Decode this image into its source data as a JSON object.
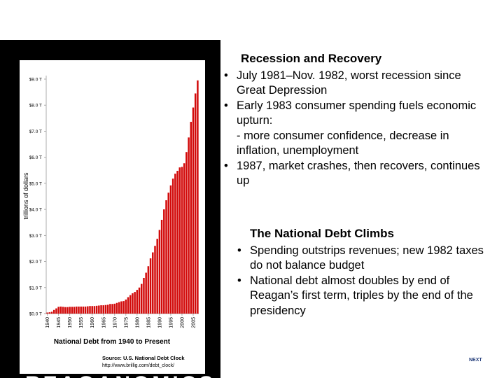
{
  "chart_data": {
    "type": "bar",
    "title": "National Debt from 1940 to Present",
    "ylabel": "trillions of dollars",
    "source": "Source: U.S. National Debt Clock",
    "source_url": "http://www.brillig.com/debt_clock/",
    "color": "#d20a0a",
    "x": [
      1940,
      1941,
      1942,
      1943,
      1944,
      1945,
      1946,
      1947,
      1948,
      1949,
      1950,
      1951,
      1952,
      1953,
      1954,
      1955,
      1956,
      1957,
      1958,
      1959,
      1960,
      1961,
      1962,
      1963,
      1964,
      1965,
      1966,
      1967,
      1968,
      1969,
      1970,
      1971,
      1972,
      1973,
      1974,
      1975,
      1976,
      1977,
      1978,
      1979,
      1980,
      1981,
      1982,
      1983,
      1984,
      1985,
      1986,
      1987,
      1988,
      1989,
      1990,
      1991,
      1992,
      1993,
      1994,
      1995,
      1996,
      1997,
      1998,
      1999,
      2000,
      2001,
      2002,
      2003,
      2004,
      2005,
      2006,
      2007
    ],
    "values": [
      0.04,
      0.05,
      0.07,
      0.14,
      0.2,
      0.26,
      0.27,
      0.26,
      0.25,
      0.25,
      0.26,
      0.26,
      0.26,
      0.27,
      0.27,
      0.27,
      0.27,
      0.27,
      0.28,
      0.29,
      0.29,
      0.29,
      0.3,
      0.31,
      0.32,
      0.32,
      0.33,
      0.34,
      0.37,
      0.37,
      0.38,
      0.41,
      0.44,
      0.47,
      0.48,
      0.54,
      0.63,
      0.71,
      0.78,
      0.83,
      0.91,
      1.0,
      1.14,
      1.37,
      1.57,
      1.82,
      2.12,
      2.35,
      2.6,
      2.87,
      3.21,
      3.6,
      4.0,
      4.35,
      4.64,
      4.92,
      5.18,
      5.37,
      5.48,
      5.61,
      5.63,
      5.77,
      6.2,
      6.76,
      7.36,
      7.91,
      8.45,
      8.95
    ],
    "xlim": [
      1939.5,
      2007.5
    ],
    "xticks": [
      1940,
      1945,
      1950,
      1955,
      1960,
      1965,
      1970,
      1975,
      1980,
      1985,
      1990,
      1995,
      2000,
      2005
    ],
    "ylim": [
      0,
      9
    ],
    "yticks": [
      {
        "value": 0,
        "label": "$0.0 T"
      },
      {
        "value": 1,
        "label": "$1.0 T"
      },
      {
        "value": 2,
        "label": "$2.0 T"
      },
      {
        "value": 3,
        "label": "$3.0 T"
      },
      {
        "value": 4,
        "label": "$4.0 T"
      },
      {
        "value": 5,
        "label": "$5.0 T"
      },
      {
        "value": 6,
        "label": "$6.0 T"
      },
      {
        "value": 7,
        "label": "$7.0 T"
      },
      {
        "value": 8,
        "label": "$8.0 T"
      },
      {
        "value": 9,
        "label": "$9.0 T"
      }
    ]
  },
  "slide": {
    "banner": "REAGANOMICS",
    "sections": [
      {
        "heading": "Recession and Recovery",
        "bullets": [
          {
            "text": "July 1981–Nov. 1982, worst recession since Great Depression"
          },
          {
            "text": "Early 1983 consumer spending fuels economic upturn:",
            "sub": "- more consumer confidence, decrease in inflation, unemployment"
          },
          {
            "text": "1987, market crashes, then recovers, continues up"
          }
        ]
      },
      {
        "heading": "The National Debt Climbs",
        "bullets": [
          {
            "text": "Spending outstrips revenues; new 1982 taxes do not balance budget"
          },
          {
            "text": "National debt almost doubles by end of Reagan’s first term, triples by the end of the presidency"
          }
        ]
      }
    ],
    "next": "NEXT"
  }
}
